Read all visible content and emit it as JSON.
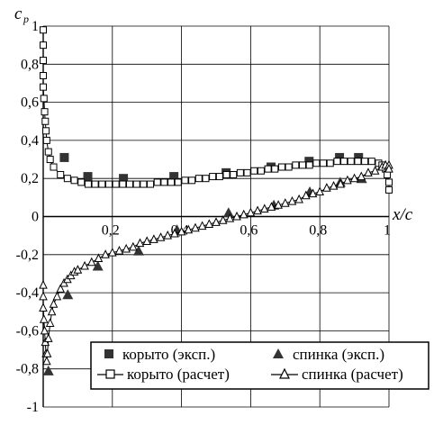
{
  "chart_data": {
    "type": "scatter",
    "ylabel": "c",
    "ylabel_sub": "p",
    "xlabel": "x/c",
    "xlim": [
      0,
      1
    ],
    "ylim": [
      -1,
      1
    ],
    "grid": true,
    "legend_position": "bottom-right",
    "x_ticks": [
      {
        "value": 0.2,
        "label": "0,2"
      },
      {
        "value": 0.4,
        "label": "0,4"
      },
      {
        "value": 0.6,
        "label": "0,6"
      },
      {
        "value": 0.8,
        "label": "0,8"
      },
      {
        "value": 1.0,
        "label": "1"
      }
    ],
    "y_ticks": [
      {
        "value": 1,
        "label": "1"
      },
      {
        "value": 0.8,
        "label": "0,8"
      },
      {
        "value": 0.6,
        "label": "0,6"
      },
      {
        "value": 0.4,
        "label": "0,4"
      },
      {
        "value": 0.2,
        "label": "0,2"
      },
      {
        "value": 0,
        "label": "0"
      },
      {
        "value": -0.2,
        "label": "-0,2"
      },
      {
        "value": -0.4,
        "label": "-0,4"
      },
      {
        "value": -0.6,
        "label": "-0,6"
      },
      {
        "value": -0.8,
        "label": "-0,8"
      },
      {
        "value": -1,
        "label": "-1"
      }
    ],
    "series": [
      {
        "name": "корыто (эксп.)",
        "marker": "filled-square",
        "line": false,
        "x": [
          0.061,
          0.129,
          0.232,
          0.378,
          0.529,
          0.659,
          0.769,
          0.857,
          0.912
        ],
        "y": [
          0.31,
          0.21,
          0.2,
          0.21,
          0.23,
          0.26,
          0.29,
          0.31,
          0.31
        ]
      },
      {
        "name": "спинка (эксп.)",
        "marker": "filled-triangle",
        "line": false,
        "x": [
          0.015,
          0.071,
          0.158,
          0.276,
          0.387,
          0.536,
          0.667,
          0.771,
          0.859,
          0.921
        ],
        "y": [
          -0.81,
          -0.41,
          -0.26,
          -0.18,
          -0.07,
          0.02,
          0.06,
          0.13,
          0.18,
          0.2
        ]
      },
      {
        "name": "корыто (расчет)",
        "marker": "open-square",
        "line": true,
        "x": [
          0.0,
          0.0,
          0.0,
          0.0,
          0.0,
          0.002,
          0.004,
          0.006,
          0.008,
          0.01,
          0.015,
          0.02,
          0.03,
          0.05,
          0.07,
          0.09,
          0.11,
          0.13,
          0.15,
          0.17,
          0.19,
          0.21,
          0.23,
          0.25,
          0.27,
          0.29,
          0.31,
          0.33,
          0.35,
          0.37,
          0.39,
          0.41,
          0.43,
          0.45,
          0.47,
          0.49,
          0.51,
          0.53,
          0.55,
          0.57,
          0.59,
          0.61,
          0.63,
          0.65,
          0.67,
          0.69,
          0.71,
          0.73,
          0.75,
          0.77,
          0.79,
          0.81,
          0.83,
          0.85,
          0.87,
          0.89,
          0.91,
          0.93,
          0.95,
          0.97,
          0.98,
          0.99,
          0.995,
          1.0,
          1.0
        ],
        "y": [
          0.98,
          0.9,
          0.82,
          0.74,
          0.68,
          0.62,
          0.55,
          0.5,
          0.45,
          0.4,
          0.34,
          0.3,
          0.26,
          0.22,
          0.2,
          0.19,
          0.18,
          0.17,
          0.17,
          0.17,
          0.17,
          0.17,
          0.17,
          0.17,
          0.17,
          0.17,
          0.17,
          0.18,
          0.18,
          0.18,
          0.18,
          0.19,
          0.19,
          0.2,
          0.2,
          0.21,
          0.21,
          0.22,
          0.22,
          0.23,
          0.23,
          0.24,
          0.24,
          0.25,
          0.25,
          0.26,
          0.26,
          0.27,
          0.27,
          0.27,
          0.28,
          0.28,
          0.28,
          0.29,
          0.29,
          0.29,
          0.29,
          0.29,
          0.29,
          0.28,
          0.27,
          0.25,
          0.22,
          0.18,
          0.14
        ]
      },
      {
        "name": "спинка (расчет)",
        "marker": "open-triangle",
        "line": true,
        "x": [
          0.0,
          0.0,
          0.0,
          0.002,
          0.004,
          0.006,
          0.008,
          0.01,
          0.012,
          0.015,
          0.02,
          0.025,
          0.03,
          0.04,
          0.05,
          0.06,
          0.07,
          0.08,
          0.09,
          0.1,
          0.12,
          0.14,
          0.16,
          0.18,
          0.2,
          0.22,
          0.24,
          0.26,
          0.28,
          0.3,
          0.32,
          0.34,
          0.36,
          0.38,
          0.4,
          0.42,
          0.44,
          0.46,
          0.48,
          0.5,
          0.52,
          0.54,
          0.56,
          0.58,
          0.6,
          0.62,
          0.64,
          0.66,
          0.68,
          0.7,
          0.72,
          0.74,
          0.76,
          0.78,
          0.8,
          0.82,
          0.84,
          0.86,
          0.88,
          0.9,
          0.92,
          0.94,
          0.96,
          0.98,
          0.99,
          1.0,
          1.0
        ],
        "y": [
          -0.36,
          -0.42,
          -0.48,
          -0.54,
          -0.6,
          -0.66,
          -0.72,
          -0.76,
          -0.72,
          -0.64,
          -0.56,
          -0.5,
          -0.46,
          -0.42,
          -0.38,
          -0.35,
          -0.33,
          -0.31,
          -0.29,
          -0.28,
          -0.26,
          -0.24,
          -0.22,
          -0.2,
          -0.19,
          -0.18,
          -0.17,
          -0.16,
          -0.14,
          -0.13,
          -0.12,
          -0.11,
          -0.1,
          -0.09,
          -0.08,
          -0.07,
          -0.06,
          -0.05,
          -0.04,
          -0.03,
          -0.02,
          -0.01,
          0.0,
          0.01,
          0.02,
          0.03,
          0.04,
          0.05,
          0.06,
          0.07,
          0.08,
          0.09,
          0.11,
          0.12,
          0.13,
          0.15,
          0.16,
          0.17,
          0.19,
          0.2,
          0.21,
          0.23,
          0.24,
          0.26,
          0.27,
          0.27,
          0.25
        ]
      }
    ]
  }
}
